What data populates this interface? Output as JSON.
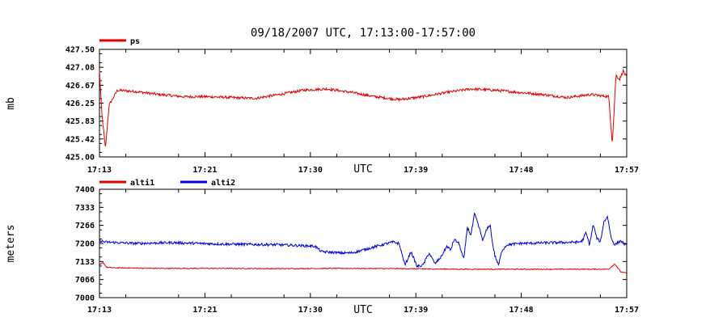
{
  "title": "09/18/2007  UTC, 17:13:00-17:57:00",
  "chart_data": [
    {
      "type": "line",
      "ylabel": "mb",
      "xlabel": "UTC",
      "x_range": [
        "17:13",
        "17:57"
      ],
      "xticks": [
        "17:13",
        "17:21",
        "17:30",
        "17:39",
        "17:48",
        "17:57"
      ],
      "yticks": [
        "427.50",
        "427.08",
        "426.67",
        "426.25",
        "425.83",
        "425.42",
        "425.00"
      ],
      "ylim": [
        425.0,
        427.5
      ],
      "legend_placement": "top-left",
      "series": [
        {
          "name": "ps",
          "color": "#e00000",
          "x": [
            0,
            0.2,
            0.5,
            0.8,
            1.5,
            3,
            5,
            7,
            9,
            11,
            13,
            15,
            17,
            19,
            21,
            23,
            25,
            27,
            29,
            31,
            33,
            35,
            37,
            39,
            41,
            42.5,
            42.8,
            43.1,
            43.4,
            43.7,
            44
          ],
          "y": [
            427.0,
            426.0,
            425.2,
            426.2,
            426.55,
            426.52,
            426.45,
            426.4,
            426.4,
            426.38,
            426.36,
            426.45,
            426.55,
            426.58,
            426.5,
            426.4,
            426.33,
            426.4,
            426.5,
            426.58,
            426.55,
            426.5,
            426.45,
            426.38,
            426.45,
            426.4,
            425.3,
            426.9,
            426.8,
            427.0,
            426.85
          ]
        }
      ]
    },
    {
      "type": "line",
      "ylabel": "meters",
      "xlabel": "UTC",
      "x_range": [
        "17:13",
        "17:57"
      ],
      "xticks": [
        "17:13",
        "17:21",
        "17:30",
        "17:39",
        "17:48",
        "17:57"
      ],
      "yticks": [
        "7400",
        "7333",
        "7266",
        "7200",
        "7133",
        "7066",
        "7000"
      ],
      "ylim": [
        7000,
        7400
      ],
      "legend_placement": "top-left",
      "series": [
        {
          "name": "alti1",
          "color": "#e00000",
          "x": [
            0,
            0.3,
            0.6,
            1.2,
            5,
            10,
            15,
            20,
            25,
            30,
            35,
            40,
            42.5,
            43,
            43.5,
            44
          ],
          "y": [
            7120,
            7130,
            7112,
            7110,
            7108,
            7108,
            7107,
            7108,
            7107,
            7105,
            7105,
            7105,
            7105,
            7125,
            7095,
            7090
          ]
        },
        {
          "name": "alti2",
          "color": "#0000e0",
          "x": [
            0,
            0.5,
            3,
            6,
            10,
            15,
            18,
            18.5,
            20,
            21,
            21.5,
            24,
            24.5,
            25,
            25.5,
            26,
            26.5,
            27,
            27.5,
            28,
            28.5,
            29,
            29.3,
            29.6,
            30,
            30.4,
            30.7,
            31,
            31.3,
            31.6,
            32,
            32.3,
            32.6,
            32.8,
            33,
            33.3,
            33.6,
            34,
            35,
            38,
            40,
            40.3,
            40.6,
            40.9,
            41.2,
            41.5,
            41.8,
            42.1,
            42.4,
            42.7,
            43,
            43.5,
            44
          ],
          "y": [
            7210,
            7205,
            7200,
            7203,
            7198,
            7195,
            7190,
            7170,
            7165,
            7165,
            7170,
            7200,
            7205,
            7200,
            7120,
            7170,
            7115,
            7120,
            7165,
            7125,
            7150,
            7190,
            7175,
            7215,
            7200,
            7140,
            7260,
            7230,
            7310,
            7270,
            7210,
            7250,
            7270,
            7200,
            7155,
            7120,
            7175,
            7195,
            7200,
            7203,
            7205,
            7210,
            7240,
            7195,
            7270,
            7220,
            7205,
            7280,
            7300,
            7220,
            7195,
            7210,
            7190
          ]
        }
      ]
    }
  ]
}
